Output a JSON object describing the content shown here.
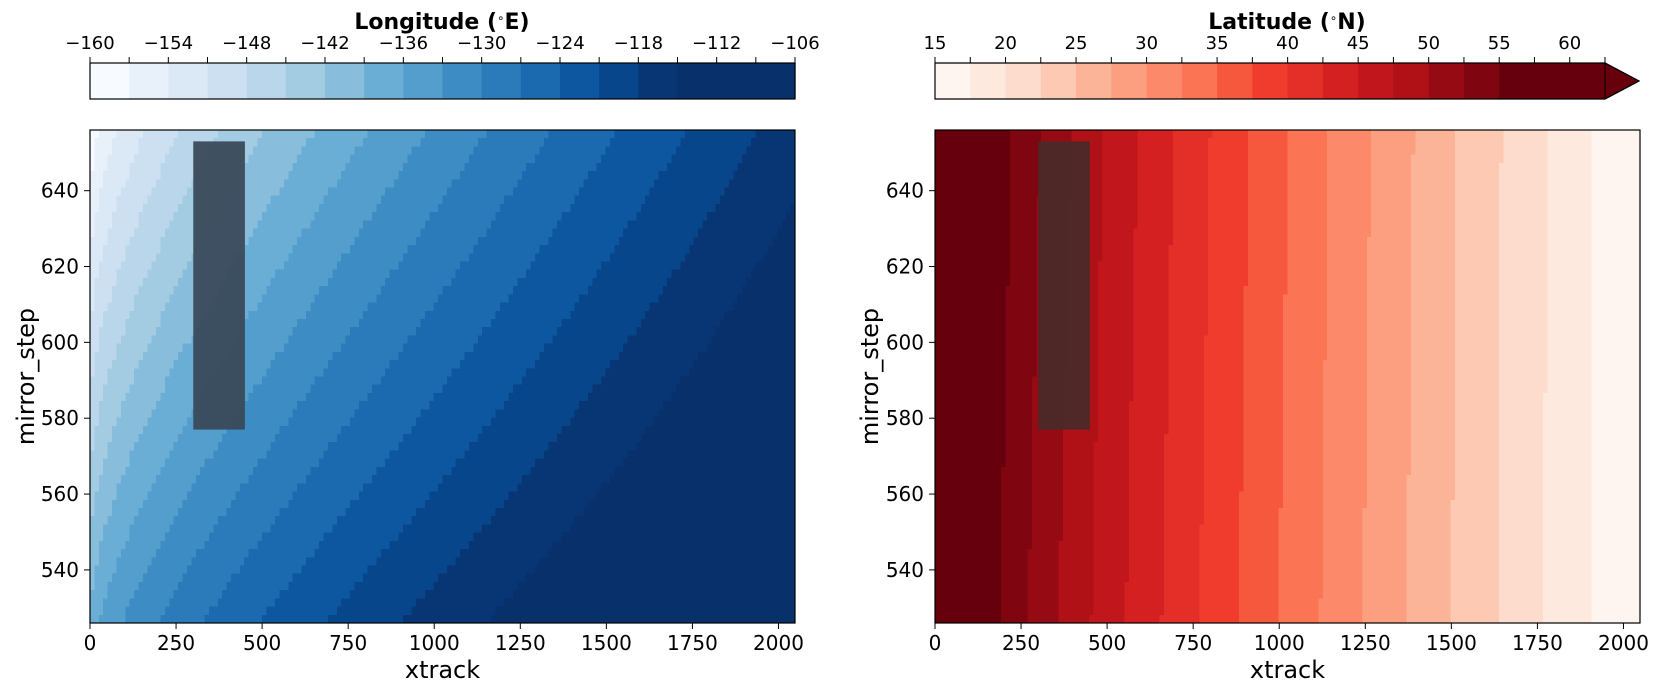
{
  "chart_data": [
    {
      "type": "heatmap",
      "title": "",
      "xlabel": "xtrack",
      "ylabel": "mirror_step",
      "xlim": [
        0,
        2048
      ],
      "ylim": [
        526,
        656
      ],
      "x_ticks": [
        "0",
        "250",
        "500",
        "750",
        "1000",
        "1250",
        "1500",
        "1750",
        "2000"
      ],
      "y_ticks": [
        "540",
        "560",
        "580",
        "600",
        "620",
        "640"
      ],
      "colorbar": {
        "label": "Longitude (∘E)",
        "label_plain": "Longitude (",
        "label_unit": "E)",
        "colormap": "Blues",
        "levels": [
          -160,
          -157,
          -154,
          -151,
          -148,
          -145,
          -142,
          -139,
          -136,
          -133,
          -130,
          -127,
          -124,
          -121,
          -118,
          -115,
          -112,
          -109,
          -106
        ],
        "tick_labels": [
          "−160",
          "−154",
          "−148",
          "−142",
          "−136",
          "−130",
          "−124",
          "−118",
          "−112",
          "−106"
        ],
        "extend": "neither",
        "colors": [
          "#f7fbff",
          "#e8f1fa",
          "#dbe9f6",
          "#cde0f1",
          "#bad6eb",
          "#a3cce3",
          "#88bedc",
          "#6aaed6",
          "#539ecd",
          "#3d8dc4",
          "#2b7bba",
          "#1b69af",
          "#0d57a1",
          "#08468b",
          "#083573",
          "#08306b",
          "#08306b",
          "#08306b"
        ]
      },
      "field": {
        "description_values": "Longitude increases with xtrack and decreases with mirror_step",
        "corner_values": {
          "x0_ymin": -139,
          "x0_ymax": -160,
          "x2048_ymin": -106,
          "x2048_ymax": -116
        }
      },
      "overlay_box": {
        "x_range": [
          300,
          450
        ],
        "y_range": [
          577,
          653
        ],
        "color": "#3a4a5a"
      }
    },
    {
      "type": "heatmap",
      "title": "",
      "xlabel": "xtrack",
      "ylabel": "mirror_step",
      "xlim": [
        0,
        2048
      ],
      "ylim": [
        526,
        656
      ],
      "x_ticks": [
        "0",
        "250",
        "500",
        "750",
        "1000",
        "1250",
        "1500",
        "1750",
        "2000"
      ],
      "y_ticks": [
        "540",
        "560",
        "580",
        "600",
        "620",
        "640"
      ],
      "colorbar": {
        "label": "Latitude (∘N)",
        "label_plain": "Latitude (",
        "label_unit": "N)",
        "colormap": "Reds",
        "levels": [
          15,
          17.5,
          20,
          22.5,
          25,
          27.5,
          30,
          32.5,
          35,
          37.5,
          40,
          42.5,
          45,
          47.5,
          50,
          52.5,
          55,
          57.5,
          60,
          62.5
        ],
        "tick_labels": [
          "15",
          "20",
          "25",
          "30",
          "35",
          "40",
          "45",
          "50",
          "55",
          "60"
        ],
        "extend": "max",
        "colors": [
          "#fff5f0",
          "#fee9df",
          "#fedccd",
          "#fdc9b3",
          "#fcb499",
          "#fc9e80",
          "#fc8a6a",
          "#fb7555",
          "#f6583e",
          "#ef3c2c",
          "#e32f27",
          "#d42020",
          "#c1161b",
          "#af1117",
          "#960b13",
          "#7f0510",
          "#67000d"
        ]
      },
      "field": {
        "description_values": "Latitude decreases with xtrack, nearly independent of mirror_step",
        "range": [
          15,
          63
        ]
      },
      "overlay_box": {
        "x_range": [
          300,
          450
        ],
        "y_range": [
          577,
          653
        ],
        "color": "#4a2a28"
      }
    }
  ]
}
